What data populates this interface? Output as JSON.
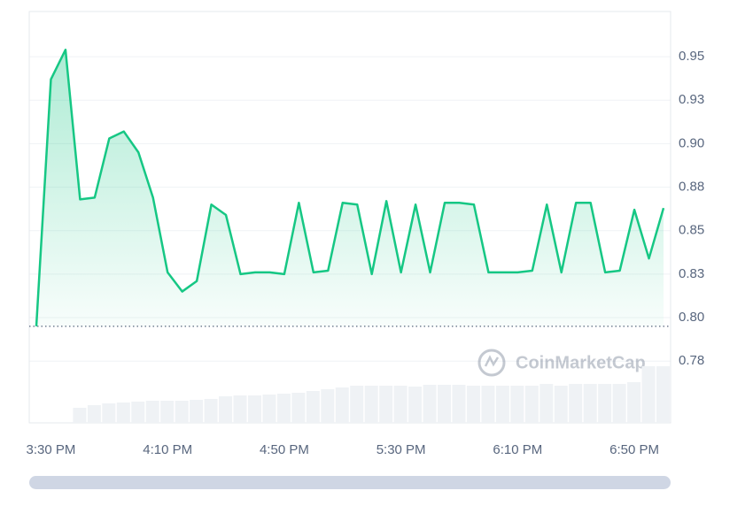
{
  "chart_data": {
    "type": "line",
    "watermark": "CoinMarketCap",
    "categories": [
      null,
      "3:30 PM",
      null,
      null,
      null,
      null,
      null,
      null,
      null,
      "4:10 PM",
      null,
      null,
      null,
      null,
      null,
      null,
      null,
      "4:50 PM",
      null,
      null,
      null,
      null,
      null,
      null,
      null,
      "5:30 PM",
      null,
      null,
      null,
      null,
      null,
      null,
      null,
      "6:10 PM",
      null,
      null,
      null,
      null,
      null,
      null,
      null,
      "6:50 PM",
      null,
      null
    ],
    "series": [
      {
        "color": "#16c784",
        "values": [
          0.795,
          0.937,
          0.954,
          0.868,
          0.869,
          0.903,
          0.907,
          0.895,
          0.869,
          0.826,
          0.815,
          0.821,
          0.865,
          0.859,
          0.825,
          0.826,
          0.826,
          0.825,
          0.866,
          0.826,
          0.827,
          0.866,
          0.865,
          0.825,
          0.867,
          0.826,
          0.865,
          0.826,
          0.866,
          0.866,
          0.865,
          0.826,
          0.826,
          0.826,
          0.827,
          0.865,
          0.826,
          0.866,
          0.866,
          0.826,
          0.827,
          0.862,
          0.834,
          0.863
        ]
      }
    ],
    "volume": {
      "color": "#eff2f5",
      "values": [
        null,
        null,
        null,
        17,
        20,
        22,
        23,
        24,
        25,
        25,
        25,
        26,
        27,
        30,
        31,
        31,
        32,
        33,
        34,
        36,
        38,
        40,
        42,
        42,
        42,
        42,
        41,
        43,
        43,
        43,
        42,
        42,
        42,
        42,
        42,
        44,
        42,
        44,
        44,
        44,
        44,
        46,
        64,
        64
      ]
    },
    "ylim": [
      0.7395,
      0.976
    ],
    "yticks": [
      {
        "value": 0.775,
        "label": "0.78"
      },
      {
        "value": 0.8,
        "label": "0.80"
      },
      {
        "value": 0.825,
        "label": "0.83"
      },
      0.85,
      {
        "value": 0.875,
        "label": "0.88"
      },
      {
        "value": 0.9,
        "label": "0.90"
      },
      {
        "value": 0.925,
        "label": "0.93"
      },
      0.95
    ],
    "grid": true
  }
}
